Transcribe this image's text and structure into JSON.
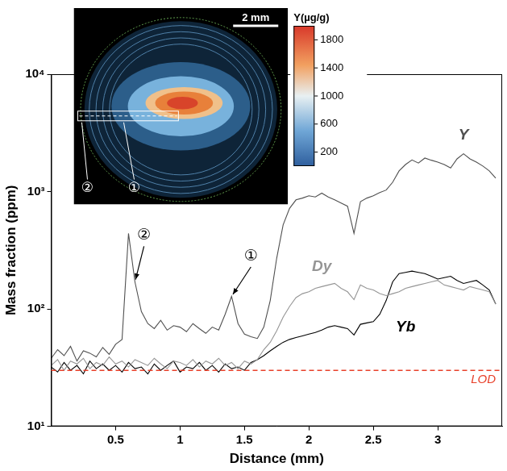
{
  "chart_data": {
    "type": "line",
    "xlabel": "Distance (mm)",
    "ylabel": "Mass fraction (ppm)",
    "log": "y",
    "grid": false,
    "xlim": [
      0,
      3.5
    ],
    "xticks": [
      0.5,
      1,
      1.5,
      2,
      2.5,
      3
    ],
    "ylim": [
      10,
      10000
    ],
    "yticks": [
      {
        "value": 10,
        "label": "10¹"
      },
      {
        "value": 100,
        "label": "10²"
      },
      {
        "value": 1000,
        "label": "10³"
      },
      {
        "value": 10000,
        "label": "10⁴"
      }
    ],
    "x": [
      0,
      0.05,
      0.1,
      0.15,
      0.2,
      0.25,
      0.3,
      0.35,
      0.4,
      0.45,
      0.5,
      0.55,
      0.6,
      0.65,
      0.7,
      0.75,
      0.8,
      0.85,
      0.9,
      0.95,
      1,
      1.05,
      1.1,
      1.15,
      1.2,
      1.25,
      1.3,
      1.35,
      1.4,
      1.45,
      1.5,
      1.55,
      1.6,
      1.65,
      1.7,
      1.75,
      1.8,
      1.85,
      1.9,
      1.95,
      2,
      2.05,
      2.1,
      2.15,
      2.2,
      2.25,
      2.3,
      2.35,
      2.4,
      2.45,
      2.5,
      2.55,
      2.6,
      2.65,
      2.7,
      2.75,
      2.8,
      2.85,
      2.9,
      2.95,
      3,
      3.05,
      3.1,
      3.15,
      3.2,
      3.25,
      3.3,
      3.35,
      3.4,
      3.45
    ],
    "series": [
      {
        "name": "Y",
        "color": "#505050",
        "label_at": [
          3.2,
          3000
        ],
        "values": [
          38,
          45,
          40,
          48,
          36,
          44,
          42,
          39,
          47,
          41,
          50,
          55,
          440,
          170,
          95,
          75,
          68,
          80,
          66,
          72,
          70,
          64,
          75,
          68,
          62,
          70,
          66,
          90,
          128,
          75,
          61,
          58,
          56,
          70,
          118,
          270,
          520,
          720,
          850,
          880,
          920,
          900,
          970,
          900,
          850,
          800,
          750,
          440,
          820,
          880,
          920,
          980,
          1030,
          1200,
          1500,
          1700,
          1860,
          1750,
          1930,
          1850,
          1780,
          1700,
          1590,
          1900,
          2100,
          1900,
          1780,
          1650,
          1500,
          1300
        ]
      },
      {
        "name": "Dy",
        "color": "#959595",
        "label_at": [
          2.1,
          230
        ],
        "values": [
          33,
          37,
          30,
          36,
          34,
          38,
          31,
          35,
          33,
          39,
          34,
          36,
          32,
          37,
          35,
          33,
          38,
          34,
          31,
          36,
          35,
          33,
          37,
          32,
          36,
          34,
          38,
          33,
          35,
          31,
          36,
          34,
          37,
          45,
          52,
          65,
          85,
          105,
          125,
          135,
          140,
          150,
          155,
          160,
          165,
          150,
          140,
          120,
          160,
          150,
          145,
          135,
          130,
          135,
          140,
          150,
          155,
          160,
          165,
          170,
          175,
          160,
          155,
          150,
          145,
          155,
          150,
          145,
          140,
          110
        ]
      },
      {
        "name": "Yb",
        "color": "#000000",
        "label_at": [
          2.75,
          70
        ],
        "values": [
          32,
          29,
          35,
          30,
          33,
          28,
          36,
          31,
          34,
          30,
          33,
          29,
          35,
          31,
          32,
          28,
          34,
          30,
          33,
          36,
          29,
          32,
          31,
          35,
          30,
          33,
          29,
          34,
          31,
          32,
          30,
          35,
          37,
          40,
          44,
          48,
          52,
          55,
          57,
          59,
          61,
          63,
          66,
          70,
          72,
          70,
          68,
          60,
          74,
          76,
          78,
          90,
          118,
          170,
          200,
          205,
          210,
          205,
          200,
          190,
          180,
          185,
          190,
          175,
          165,
          170,
          175,
          160,
          145,
          110
        ]
      }
    ],
    "reference_lines": [
      {
        "label": "LOD",
        "value": 30,
        "color": "#e8402a",
        "line_style": "dashed"
      }
    ],
    "annotations": [
      {
        "text": "①",
        "x": 1.4,
        "y": 128,
        "text_x": 1.55,
        "text_y": 280
      },
      {
        "text": "②",
        "x": 0.65,
        "y": 170,
        "text_x": 0.72,
        "text_y": 420
      }
    ],
    "inset": {
      "scale_bar": "2 mm",
      "markers": [
        "①",
        "②"
      ],
      "colorbar": {
        "label": "Y(µg/g)",
        "range": [
          0,
          2000
        ],
        "ticks": [
          200,
          600,
          1000,
          1400,
          1800
        ]
      }
    }
  }
}
